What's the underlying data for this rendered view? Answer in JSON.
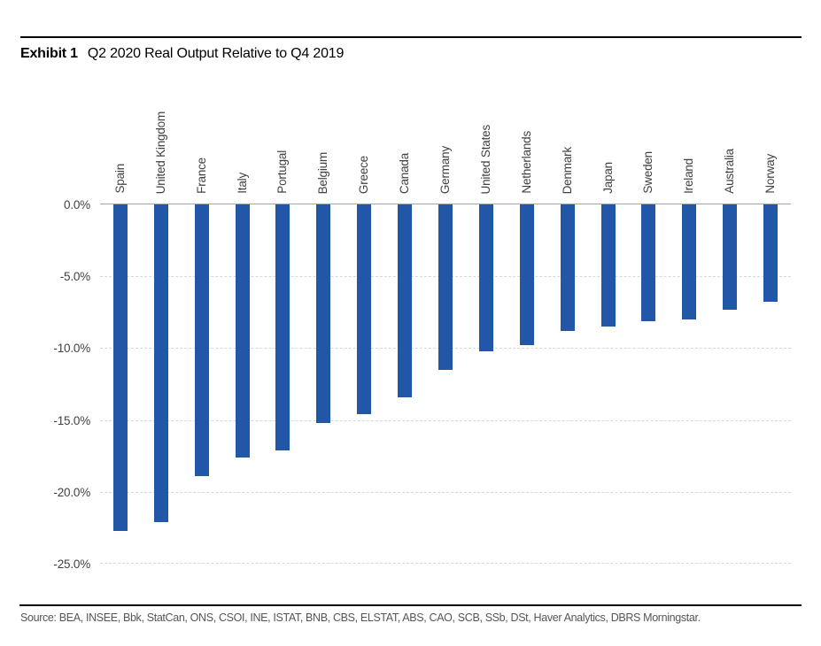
{
  "header": {
    "exhibit_label": "Exhibit 1",
    "title": "Q2 2020 Real Output Relative to Q4 2019"
  },
  "chart_data": {
    "type": "bar",
    "title": "Q2 2020 Real Output Relative to Q4 2019",
    "categories": [
      "Spain",
      "United Kingdom",
      "France",
      "Italy",
      "Portugal",
      "Belgium",
      "Greece",
      "Canada",
      "Germany",
      "United States",
      "Netherlands",
      "Denmark",
      "Japan",
      "Sweden",
      "Ireland",
      "Australia",
      "Norway"
    ],
    "values": [
      -22.7,
      -22.1,
      -18.9,
      -17.6,
      -17.1,
      -15.2,
      -14.6,
      -13.4,
      -11.5,
      -10.2,
      -9.8,
      -8.8,
      -8.5,
      -8.1,
      -8.0,
      -7.3,
      -6.8
    ],
    "unit": "percent",
    "ylim": [
      -25,
      0
    ],
    "ytick_values": [
      0,
      -5,
      -10,
      -15,
      -20,
      -25
    ],
    "ytick_labels": [
      "0.0%",
      "-5.0%",
      "-10.0%",
      "-15.0%",
      "-20.0%",
      "-25.0%"
    ],
    "grid": "horizontal-dashed",
    "legend": "none",
    "category_label_rotation": 90,
    "bar_color": "#2157a6"
  },
  "footer": {
    "source": "Source: BEA, INSEE, Bbk, StatCan, ONS, CSOI, INE, ISTAT, BNB, CBS, ELSTAT, ABS, CAO, SCB, SSb, DSt, Haver Analytics, DBRS Morningstar."
  },
  "colors": {
    "bar": "#2157a6",
    "zero_axis_line": "#a6a6a6",
    "gridline": "#d8d8d8",
    "axis_labels": "#414141",
    "title_text": "#000000",
    "source_text": "#55565a",
    "divider_rules": "#000000",
    "background": "#ffffff"
  }
}
